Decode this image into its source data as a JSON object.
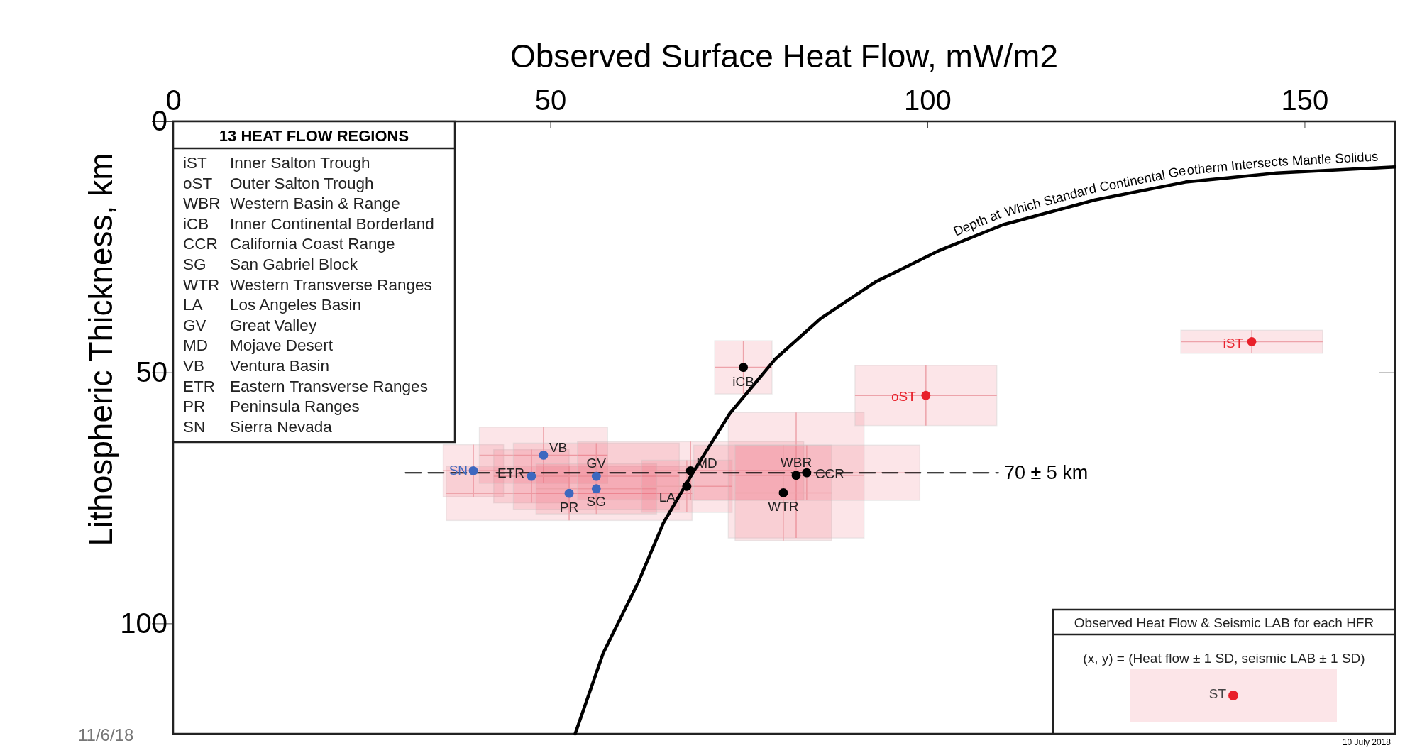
{
  "chart_data": {
    "type": "scatter",
    "xlabel": "Observed Surface Heat Flow, mW/m2",
    "ylabel": "Lithospheric Thickness, km",
    "xlim": [
      0,
      162
    ],
    "xticks": [
      0,
      50,
      100,
      150
    ],
    "ylim": [
      122,
      0
    ],
    "yticks": [
      0,
      50,
      100
    ],
    "grid": false,
    "marker": "circle",
    "series": [
      {
        "color": "#3d68bf",
        "x": [
          39.8,
          47.5,
          49.1,
          52.5,
          56.1,
          56.1
        ],
        "values": [
          69.6,
          70.7,
          66.5,
          74.1,
          70.7,
          73.2
        ],
        "xerrors": [
          4,
          5,
          8.5,
          16.3,
          11,
          8
        ],
        "errors": [
          5.2,
          5.3,
          5.6,
          5.4,
          6.6,
          5
        ],
        "value_labels": [
          "SN",
          "ETR",
          "VB",
          "PR",
          "GV",
          "SG"
        ]
      },
      {
        "color": "#000000",
        "x": [
          68.6,
          68.1,
          75.6,
          82.6,
          84.0,
          80.9
        ],
        "values": [
          69.6,
          72.7,
          49.0,
          70.5,
          70.0,
          74.0
        ],
        "xerrors": [
          15,
          6,
          3.8,
          9,
          15,
          6.4
        ],
        "errors": [
          5.8,
          5.2,
          5.3,
          12.5,
          5.5,
          9.5
        ],
        "value_labels": [
          "MD",
          "LA",
          "iCB",
          "WBR",
          "CCR",
          "WTR"
        ]
      },
      {
        "color": "#e8202a",
        "x": [
          99.8,
          143.0
        ],
        "values": [
          54.6,
          43.9
        ],
        "xerrors": [
          9.4,
          9.4
        ],
        "errors": [
          6,
          2.3
        ],
        "value_labels": [
          "oST",
          "iST"
        ]
      },
      {
        "type": "line",
        "name": "Depth at Which Standard Continental Geotherm Intersects Mantle Solidus",
        "color": "#000000",
        "marker": "none",
        "line_style": "solid",
        "x": [
          53.3,
          57,
          61.7,
          65,
          68.9,
          73.8,
          79.8,
          85.9,
          93.1,
          101.6,
          110,
          122.1,
          134.2,
          146.3,
          162
        ],
        "values": [
          122,
          106,
          91.7,
          80,
          70.0,
          58.2,
          47.4,
          39.2,
          32.0,
          25.7,
          20.6,
          15.7,
          12.1,
          10.3,
          9.1
        ]
      },
      {
        "type": "line",
        "name": "70 ± 5 km",
        "color": "#000000",
        "marker": "none",
        "line_style": "dashed",
        "x": [
          30.8,
          109.4
        ],
        "values": [
          70,
          70
        ]
      }
    ],
    "annotations": [
      "13 HEAT FLOW REGIONS",
      "iST Inner Salton Trough",
      "oST Outer Salton Trough",
      "WBR Western Basin & Range",
      "iCB Inner Continental Borderland",
      "CCR California Coast Range",
      "SG San Gabriel Block",
      "WTR Western Transverse Ranges",
      "LA Los Angeles Basin",
      "GV Great Valley",
      "MD Mojave Desert",
      "VB Ventura Basin",
      "ETR Eastern Transverse Ranges",
      "PR Peninsula Ranges",
      "SN Sierra Nevada",
      "Observed Heat Flow & Seismic LAB for each HFR",
      "(x, y) = (Heat flow ± 1 SD, seismic LAB ± 1 SD)",
      "ST",
      "10 July 2018",
      "11/6/18"
    ]
  }
}
